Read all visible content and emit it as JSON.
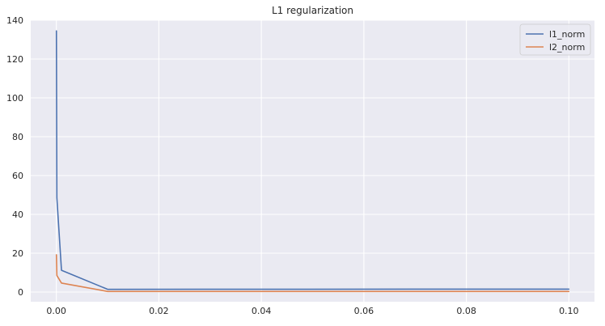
{
  "chart_data": {
    "type": "line",
    "title": "L1 regularization",
    "xlabel": "",
    "ylabel": "",
    "xlim": [
      -0.005,
      0.105
    ],
    "ylim": [
      -5,
      140
    ],
    "x_ticks": [
      0.0,
      0.02,
      0.04,
      0.06,
      0.08,
      0.1
    ],
    "x_tick_labels": [
      "0.00",
      "0.02",
      "0.04",
      "0.06",
      "0.08",
      "0.10"
    ],
    "y_ticks": [
      0,
      20,
      40,
      60,
      80,
      100,
      120,
      140
    ],
    "y_tick_labels": [
      "0",
      "20",
      "40",
      "60",
      "80",
      "100",
      "120",
      "140"
    ],
    "grid": true,
    "legend_position": "top-right",
    "background_color": "#eaeaf2",
    "series": [
      {
        "name": "l1_norm",
        "color": "#4c72b0",
        "x": [
          1e-05,
          0.0001,
          0.001,
          0.01,
          0.1
        ],
        "y": [
          134.5,
          48.5,
          11.2,
          1.4,
          1.5
        ]
      },
      {
        "name": "l2_norm",
        "color": "#dd8452",
        "x": [
          1e-05,
          0.0001,
          0.001,
          0.01,
          0.1
        ],
        "y": [
          19.2,
          8.5,
          4.6,
          0.3,
          0.3
        ]
      }
    ]
  }
}
